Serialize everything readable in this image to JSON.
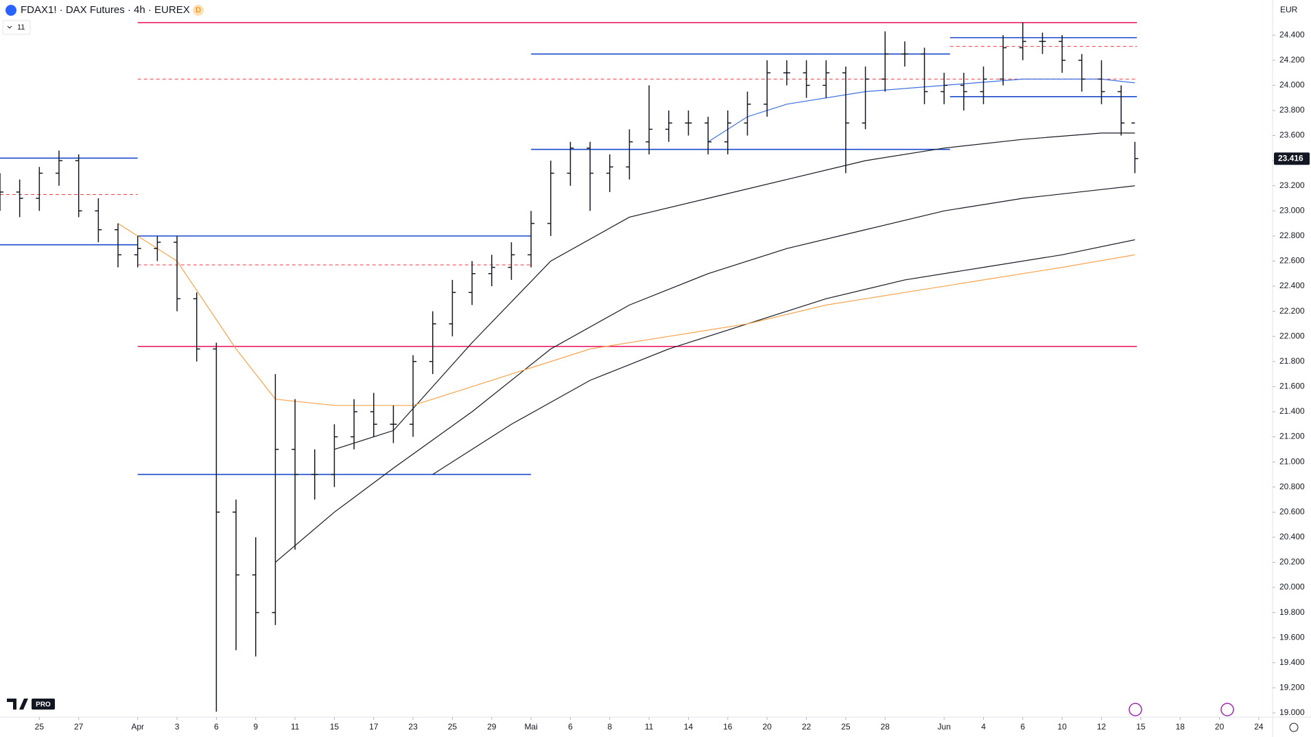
{
  "chart_data": {
    "type": "ohlc",
    "title": "FDAX1! · DAX Futures · 4h · EUREX",
    "badge": "D",
    "indicator_count": "11",
    "currency": "EUR",
    "logo_badge": "PRO",
    "bar_color": "#131722",
    "xlim": [
      0,
      64.7
    ],
    "ylim": [
      18967,
      24680
    ],
    "xticks": [
      {
        "value": 2,
        "label": "25"
      },
      {
        "value": 4,
        "label": "27"
      },
      {
        "value": 7,
        "label": "Apr"
      },
      {
        "value": 9,
        "label": "3"
      },
      {
        "value": 11,
        "label": "6"
      },
      {
        "value": 13,
        "label": "9"
      },
      {
        "value": 15,
        "label": "11"
      },
      {
        "value": 17,
        "label": "15"
      },
      {
        "value": 19,
        "label": "17"
      },
      {
        "value": 21,
        "label": "23"
      },
      {
        "value": 23,
        "label": "25"
      },
      {
        "value": 25,
        "label": "29"
      },
      {
        "value": 27,
        "label": "Mai"
      },
      {
        "value": 29,
        "label": "6"
      },
      {
        "value": 31,
        "label": "8"
      },
      {
        "value": 33,
        "label": "11"
      },
      {
        "value": 35,
        "label": "14"
      },
      {
        "value": 37,
        "label": "16"
      },
      {
        "value": 39,
        "label": "20"
      },
      {
        "value": 41,
        "label": "22"
      },
      {
        "value": 43,
        "label": "25"
      },
      {
        "value": 45,
        "label": "28"
      },
      {
        "value": 48,
        "label": "Jun"
      },
      {
        "value": 50,
        "label": "4"
      },
      {
        "value": 52,
        "label": "6"
      },
      {
        "value": 54,
        "label": "10"
      },
      {
        "value": 56,
        "label": "12"
      },
      {
        "value": 58,
        "label": "15"
      },
      {
        "value": 60,
        "label": "18"
      },
      {
        "value": 62,
        "label": "20"
      },
      {
        "value": 64,
        "label": "24"
      }
    ],
    "yticks": [
      {
        "value": 19000,
        "label": "19.000"
      },
      {
        "value": 19200,
        "label": "19.200"
      },
      {
        "value": 19400,
        "label": "19.400"
      },
      {
        "value": 19600,
        "label": "19.600"
      },
      {
        "value": 19800,
        "label": "19.800"
      },
      {
        "value": 20000,
        "label": "20.000"
      },
      {
        "value": 20200,
        "label": "20.200"
      },
      {
        "value": 20400,
        "label": "20.400"
      },
      {
        "value": 20600,
        "label": "20.600"
      },
      {
        "value": 20800,
        "label": "20.800"
      },
      {
        "value": 21000,
        "label": "21.000"
      },
      {
        "value": 21200,
        "label": "21.200"
      },
      {
        "value": 21400,
        "label": "21.400"
      },
      {
        "value": 21600,
        "label": "21.600"
      },
      {
        "value": 21800,
        "label": "21.800"
      },
      {
        "value": 22000,
        "label": "22.000"
      },
      {
        "value": 22200,
        "label": "22.200"
      },
      {
        "value": 22400,
        "label": "22.400"
      },
      {
        "value": 22600,
        "label": "22.600"
      },
      {
        "value": 22800,
        "label": "22.800"
      },
      {
        "value": 23000,
        "label": "23.000"
      },
      {
        "value": 23200,
        "label": "23.200"
      },
      {
        "value": 23400,
        "label": "23.400"
      },
      {
        "value": 23600,
        "label": "23.600"
      },
      {
        "value": 23800,
        "label": "23.800"
      },
      {
        "value": 24000,
        "label": "24.000"
      },
      {
        "value": 24200,
        "label": "24.200"
      },
      {
        "value": 24400,
        "label": "24.400"
      }
    ],
    "last_price": {
      "value": 23416,
      "label": "23.416"
    },
    "ohlc": {
      "x": [
        0,
        1,
        2,
        3,
        4,
        5,
        6,
        7,
        8,
        9,
        10,
        11,
        12,
        13,
        14,
        15,
        16,
        17,
        18,
        19,
        20,
        21,
        22,
        23,
        24,
        25,
        26,
        27,
        28,
        29,
        30,
        31,
        32,
        33,
        34,
        35,
        36,
        37,
        38,
        39,
        40,
        41,
        42,
        43,
        44,
        45,
        46,
        47,
        48,
        49,
        50,
        51,
        52,
        53,
        54,
        55,
        56,
        57,
        57.7
      ],
      "open": [
        23200,
        23150,
        23100,
        23300,
        23400,
        23000,
        22850,
        22650,
        22700,
        22750,
        22300,
        21900,
        20600,
        20100,
        19800,
        21100,
        20900,
        20900,
        21200,
        21400,
        21300,
        21300,
        21800,
        22100,
        22350,
        22500,
        22550,
        22650,
        22900,
        23300,
        23500,
        23300,
        23350,
        23550,
        23650,
        23700,
        23700,
        23550,
        23700,
        23850,
        24100,
        24100,
        24000,
        24100,
        23700,
        24050,
        24250,
        24250,
        23950,
        24000,
        23950,
        24050,
        24300,
        24350,
        24350,
        24200,
        24050,
        23950,
        23700
      ],
      "high": [
        23300,
        23250,
        23350,
        23480,
        23450,
        23100,
        22900,
        22800,
        22800,
        22800,
        22350,
        21950,
        20700,
        20400,
        21700,
        21500,
        21100,
        21300,
        21500,
        21550,
        21450,
        21850,
        22200,
        22450,
        22600,
        22650,
        22750,
        23000,
        23400,
        23550,
        23550,
        23450,
        23650,
        24000,
        23800,
        23800,
        23750,
        23800,
        23950,
        24200,
        24200,
        24200,
        24200,
        24150,
        24150,
        24430,
        24350,
        24300,
        24100,
        24100,
        24150,
        24400,
        24500,
        24420,
        24400,
        24250,
        24200,
        24000,
        23550
      ],
      "low": [
        23000,
        22950,
        23000,
        23200,
        22950,
        22750,
        22550,
        22550,
        22600,
        22200,
        21800,
        19010,
        19500,
        19450,
        19700,
        20300,
        20700,
        20800,
        21100,
        21200,
        21150,
        21200,
        21700,
        22000,
        22250,
        22400,
        22450,
        22550,
        22800,
        23200,
        23000,
        23150,
        23250,
        23450,
        23550,
        23600,
        23450,
        23450,
        23600,
        23750,
        24000,
        23900,
        23900,
        23300,
        23650,
        23950,
        24150,
        23850,
        23850,
        23800,
        23850,
        24000,
        24200,
        24250,
        24100,
        23950,
        23850,
        23600,
        23300
      ],
      "close": [
        23150,
        23100,
        23300,
        23400,
        23000,
        22850,
        22650,
        22700,
        22750,
        22300,
        21900,
        20600,
        20100,
        19800,
        21100,
        20900,
        20900,
        21200,
        21400,
        21300,
        21300,
        21800,
        22100,
        22350,
        22500,
        22550,
        22650,
        22900,
        23300,
        23500,
        23300,
        23350,
        23550,
        23650,
        23700,
        23700,
        23550,
        23700,
        23850,
        24100,
        24100,
        24000,
        24100,
        23700,
        24050,
        24250,
        24250,
        23950,
        24000,
        23950,
        24050,
        24300,
        24350,
        24350,
        24200,
        24050,
        23950,
        23700,
        23416
      ]
    },
    "series": [
      {
        "color": "#131722",
        "x": [
          17,
          20,
          24,
          28,
          32,
          36,
          40,
          44,
          48,
          52,
          56,
          57.7
        ],
        "values": [
          21100,
          21250,
          21950,
          22600,
          22950,
          23100,
          23250,
          23400,
          23500,
          23570,
          23620,
          23620
        ]
      },
      {
        "color": "#131722",
        "x": [
          14,
          17,
          20,
          24,
          28,
          32,
          36,
          40,
          44,
          48,
          52,
          56,
          57.7
        ],
        "values": [
          20200,
          20600,
          20950,
          21400,
          21900,
          22250,
          22500,
          22700,
          22850,
          23000,
          23100,
          23170,
          23200
        ]
      },
      {
        "color": "#131722",
        "x": [
          22,
          26,
          30,
          34,
          38,
          42,
          46,
          50,
          54,
          57.7
        ],
        "values": [
          20900,
          21300,
          21650,
          21900,
          22100,
          22300,
          22450,
          22550,
          22650,
          22770
        ]
      },
      {
        "color": "#f7a24b",
        "x": [
          6,
          9,
          12,
          14,
          17,
          21,
          26,
          30,
          34,
          38,
          42,
          46,
          50,
          54,
          57.7
        ],
        "values": [
          22900,
          22600,
          21900,
          21500,
          21450,
          21450,
          21700,
          21900,
          22000,
          22100,
          22250,
          22350,
          22450,
          22550,
          22650
        ]
      },
      {
        "color": "#3b6fe0",
        "x": [
          36,
          38,
          40,
          44,
          48,
          52,
          56,
          57.7
        ],
        "values": [
          23550,
          23750,
          23850,
          23950,
          24000,
          24050,
          24050,
          24020
        ]
      }
    ],
    "levels": [
      {
        "price": 24500,
        "from": 7,
        "to": 57.8,
        "color": "#e91e63",
        "dash": false
      },
      {
        "price": 21920,
        "from": 7,
        "to": 57.8,
        "color": "#e91e63",
        "dash": false
      },
      {
        "price": 24050,
        "from": 7,
        "to": 57.8,
        "color": "#f23645",
        "dash": true
      },
      {
        "price": 23130,
        "from": 0,
        "to": 7,
        "color": "#f23645",
        "dash": true
      },
      {
        "price": 22570,
        "from": 7,
        "to": 27,
        "color": "#f23645",
        "dash": true
      },
      {
        "price": 24310,
        "from": 48.3,
        "to": 57.8,
        "color": "#f23645",
        "dash": true
      },
      {
        "price": 23420,
        "from": 0,
        "to": 7,
        "color": "#1848cc",
        "dash": false
      },
      {
        "price": 22730,
        "from": 0,
        "to": 7,
        "color": "#1848cc",
        "dash": false
      },
      {
        "price": 22800,
        "from": 7,
        "to": 27,
        "color": "#1848cc",
        "dash": false
      },
      {
        "price": 20900,
        "from": 7,
        "to": 27,
        "color": "#1848cc",
        "dash": false
      },
      {
        "price": 24250,
        "from": 27,
        "to": 48.3,
        "color": "#1848cc",
        "dash": false
      },
      {
        "price": 23490,
        "from": 27,
        "to": 48.3,
        "color": "#1848cc",
        "dash": false
      },
      {
        "price": 24380,
        "from": 48.3,
        "to": 57.8,
        "color": "#1848cc",
        "dash": false
      },
      {
        "price": 23910,
        "from": 48.3,
        "to": 57.8,
        "color": "#1848cc",
        "dash": false
      }
    ]
  }
}
